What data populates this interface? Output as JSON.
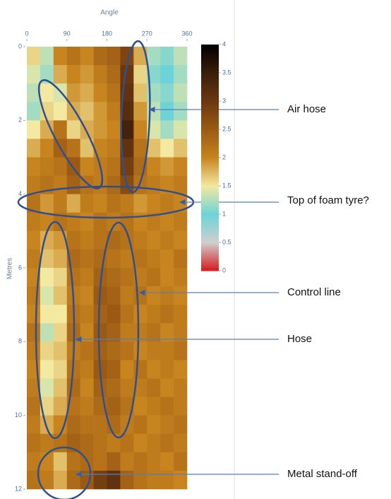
{
  "chart_data": {
    "type": "heatmap",
    "x_label": "Angle",
    "y_label": "Metres",
    "xlim": [
      0,
      360
    ],
    "ylim": [
      0,
      12
    ],
    "xticks": [
      0,
      90,
      180,
      270,
      360
    ],
    "yticks": [
      0,
      2,
      4,
      6,
      8,
      10,
      12
    ],
    "xbins": [
      0,
      30,
      60,
      90,
      120,
      150,
      180,
      210,
      240,
      270,
      300,
      330,
      360
    ],
    "ybins": [
      0,
      0.5,
      1,
      1.5,
      2,
      2.5,
      3,
      3.5,
      4,
      4.5,
      5,
      5.5,
      6,
      6.5,
      7,
      7.5,
      8,
      8.5,
      9,
      9.5,
      10,
      10.5,
      11,
      11.5,
      12
    ],
    "values": [
      [
        1.6,
        1.3,
        2.0,
        2.2,
        2.0,
        2.3,
        2.4,
        2.8,
        1.8,
        1.2,
        1.1,
        1.3
      ],
      [
        1.4,
        1.2,
        1.8,
        2.0,
        1.9,
        2.1,
        2.3,
        3.0,
        1.6,
        1.1,
        1.0,
        1.2
      ],
      [
        1.3,
        1.5,
        1.4,
        1.9,
        1.8,
        2.0,
        2.2,
        3.1,
        1.7,
        1.2,
        1.1,
        1.3
      ],
      [
        1.2,
        1.6,
        1.5,
        1.8,
        1.7,
        1.9,
        2.1,
        3.2,
        1.9,
        1.3,
        1.0,
        1.2
      ],
      [
        1.5,
        1.8,
        2.2,
        1.6,
        1.8,
        1.9,
        2.0,
        3.4,
        2.0,
        1.4,
        1.2,
        1.4
      ],
      [
        1.8,
        2.0,
        2.4,
        2.2,
        1.7,
        2.0,
        2.1,
        3.1,
        2.2,
        1.7,
        1.5,
        1.7
      ],
      [
        2.0,
        2.1,
        2.2,
        2.5,
        2.0,
        2.1,
        2.2,
        2.9,
        2.3,
        2.0,
        1.9,
        2.0
      ],
      [
        2.1,
        2.2,
        2.1,
        2.4,
        2.2,
        2.1,
        2.3,
        2.7,
        2.2,
        2.1,
        2.0,
        2.1
      ],
      [
        2.2,
        1.9,
        2.1,
        1.8,
        2.1,
        2.0,
        2.2,
        2.1,
        1.9,
        2.0,
        2.1,
        2.0
      ],
      [
        2.1,
        2.0,
        2.2,
        2.1,
        2.0,
        2.2,
        2.1,
        2.2,
        2.0,
        2.1,
        2.0,
        2.1
      ],
      [
        2.0,
        1.8,
        1.9,
        2.2,
        2.1,
        2.2,
        2.3,
        2.2,
        2.1,
        2.0,
        2.1,
        2.0
      ],
      [
        2.1,
        1.7,
        1.8,
        2.3,
        2.2,
        2.3,
        2.2,
        2.1,
        2.2,
        2.1,
        2.0,
        2.2
      ],
      [
        2.0,
        1.5,
        1.6,
        2.2,
        2.1,
        2.4,
        2.3,
        2.2,
        2.1,
        2.2,
        2.0,
        2.1
      ],
      [
        2.1,
        1.4,
        1.7,
        2.1,
        2.0,
        2.5,
        2.4,
        2.1,
        2.2,
        2.0,
        2.1,
        2.0
      ],
      [
        2.0,
        1.5,
        1.5,
        2.2,
        2.1,
        2.4,
        2.5,
        2.2,
        2.0,
        2.1,
        2.2,
        2.1
      ],
      [
        2.2,
        1.3,
        1.6,
        2.3,
        2.0,
        2.5,
        2.4,
        2.1,
        2.1,
        2.2,
        2.0,
        2.1
      ],
      [
        2.1,
        1.6,
        1.7,
        2.1,
        2.2,
        2.4,
        2.3,
        2.2,
        2.0,
        2.1,
        2.1,
        2.2
      ],
      [
        2.0,
        1.5,
        1.6,
        2.2,
        2.1,
        2.5,
        2.4,
        2.0,
        2.2,
        2.0,
        2.1,
        2.0
      ],
      [
        2.1,
        1.4,
        1.7,
        2.3,
        2.0,
        2.4,
        2.3,
        2.1,
        2.1,
        2.2,
        2.0,
        2.1
      ],
      [
        2.2,
        1.6,
        1.8,
        2.2,
        2.1,
        2.3,
        2.4,
        2.2,
        2.0,
        2.1,
        2.2,
        2.1
      ],
      [
        2.1,
        1.8,
        2.0,
        2.3,
        2.2,
        2.2,
        2.3,
        2.1,
        2.2,
        2.0,
        2.1,
        2.2
      ],
      [
        2.2,
        2.1,
        2.2,
        2.4,
        2.3,
        2.2,
        2.1,
        2.2,
        2.0,
        2.1,
        2.2,
        2.1
      ],
      [
        2.1,
        2.0,
        1.7,
        2.2,
        2.3,
        2.2,
        2.4,
        2.1,
        2.2,
        2.1,
        2.0,
        2.2
      ],
      [
        2.2,
        2.1,
        1.8,
        2.3,
        2.5,
        2.9,
        3.1,
        2.4,
        2.2,
        2.1,
        2.1,
        2.0
      ]
    ],
    "colorscale": [
      [
        0,
        "#d7191c"
      ],
      [
        0.5,
        "#cfcfcf"
      ],
      [
        1,
        "#6dd3d8"
      ],
      [
        1.5,
        "#f3e9a0"
      ],
      [
        2,
        "#c8841e"
      ],
      [
        2.5,
        "#9a5a14"
      ],
      [
        3,
        "#6b3710"
      ],
      [
        3.5,
        "#3a1d0a"
      ],
      [
        4,
        "#000000"
      ]
    ],
    "clim": [
      0,
      4
    ],
    "cticks": [
      0,
      0.5,
      1,
      1.5,
      2,
      2.5,
      3,
      3.5,
      4
    ],
    "annotations": [
      "Air hose",
      "Top of foam tyre?",
      "Control line",
      "Hose",
      "Metal stand-off"
    ]
  }
}
